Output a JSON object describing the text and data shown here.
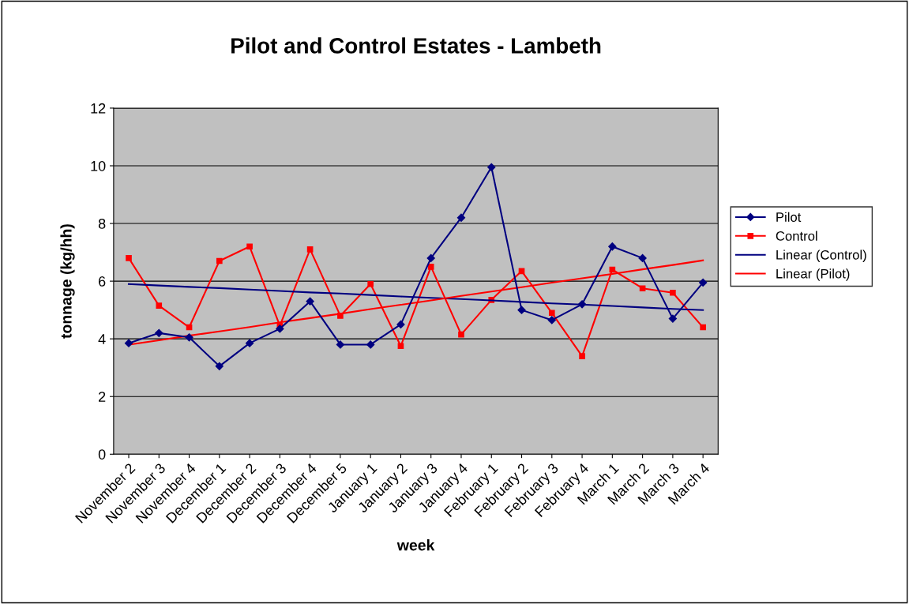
{
  "chart_data": {
    "type": "line",
    "title": "Pilot and Control Estates - Lambeth",
    "xlabel": "week",
    "ylabel": "tonnage (kg/hh)",
    "categories": [
      "November 2",
      "November 3",
      "November 4",
      "December 1",
      "December 2",
      "December 3",
      "December 4",
      "December 5",
      "January 1",
      "January 2",
      "January 3",
      "January 4",
      "February 1",
      "February 2",
      "February 3",
      "February 4",
      "March 1",
      "March 2",
      "March 3",
      "March 4"
    ],
    "series": [
      {
        "name": "Pilot",
        "color": "#000080",
        "marker": "diamond",
        "values": [
          3.85,
          4.2,
          4.05,
          3.05,
          3.85,
          4.35,
          5.3,
          3.8,
          3.8,
          4.5,
          6.8,
          8.2,
          9.95,
          5.0,
          4.65,
          5.2,
          7.2,
          6.8,
          4.7,
          5.95
        ]
      },
      {
        "name": "Control",
        "color": "#ff0000",
        "marker": "square",
        "values": [
          6.8,
          5.15,
          4.4,
          6.7,
          7.2,
          4.45,
          7.1,
          4.8,
          5.9,
          3.75,
          6.5,
          4.15,
          5.35,
          6.35,
          4.9,
          3.4,
          6.4,
          5.75,
          5.6,
          4.4
        ]
      },
      {
        "name": "Linear (Control)",
        "color": "#000080",
        "marker": "none",
        "values": [
          5.9,
          5.85,
          5.8,
          5.76,
          5.71,
          5.66,
          5.61,
          5.57,
          5.52,
          5.47,
          5.42,
          5.38,
          5.33,
          5.28,
          5.23,
          5.19,
          5.14,
          5.09,
          5.04,
          5.0
        ]
      },
      {
        "name": "Linear (Pilot)",
        "color": "#ff0000",
        "marker": "none",
        "values": [
          3.8,
          3.95,
          4.11,
          4.26,
          4.41,
          4.57,
          4.72,
          4.87,
          5.03,
          5.18,
          5.33,
          5.49,
          5.64,
          5.79,
          5.95,
          6.1,
          6.25,
          6.41,
          6.56,
          6.72
        ]
      }
    ],
    "ylim": [
      0,
      12
    ],
    "yticks": [
      0,
      2,
      4,
      6,
      8,
      10,
      12
    ],
    "grid": "y",
    "legend": "right",
    "line_style": "solid"
  }
}
